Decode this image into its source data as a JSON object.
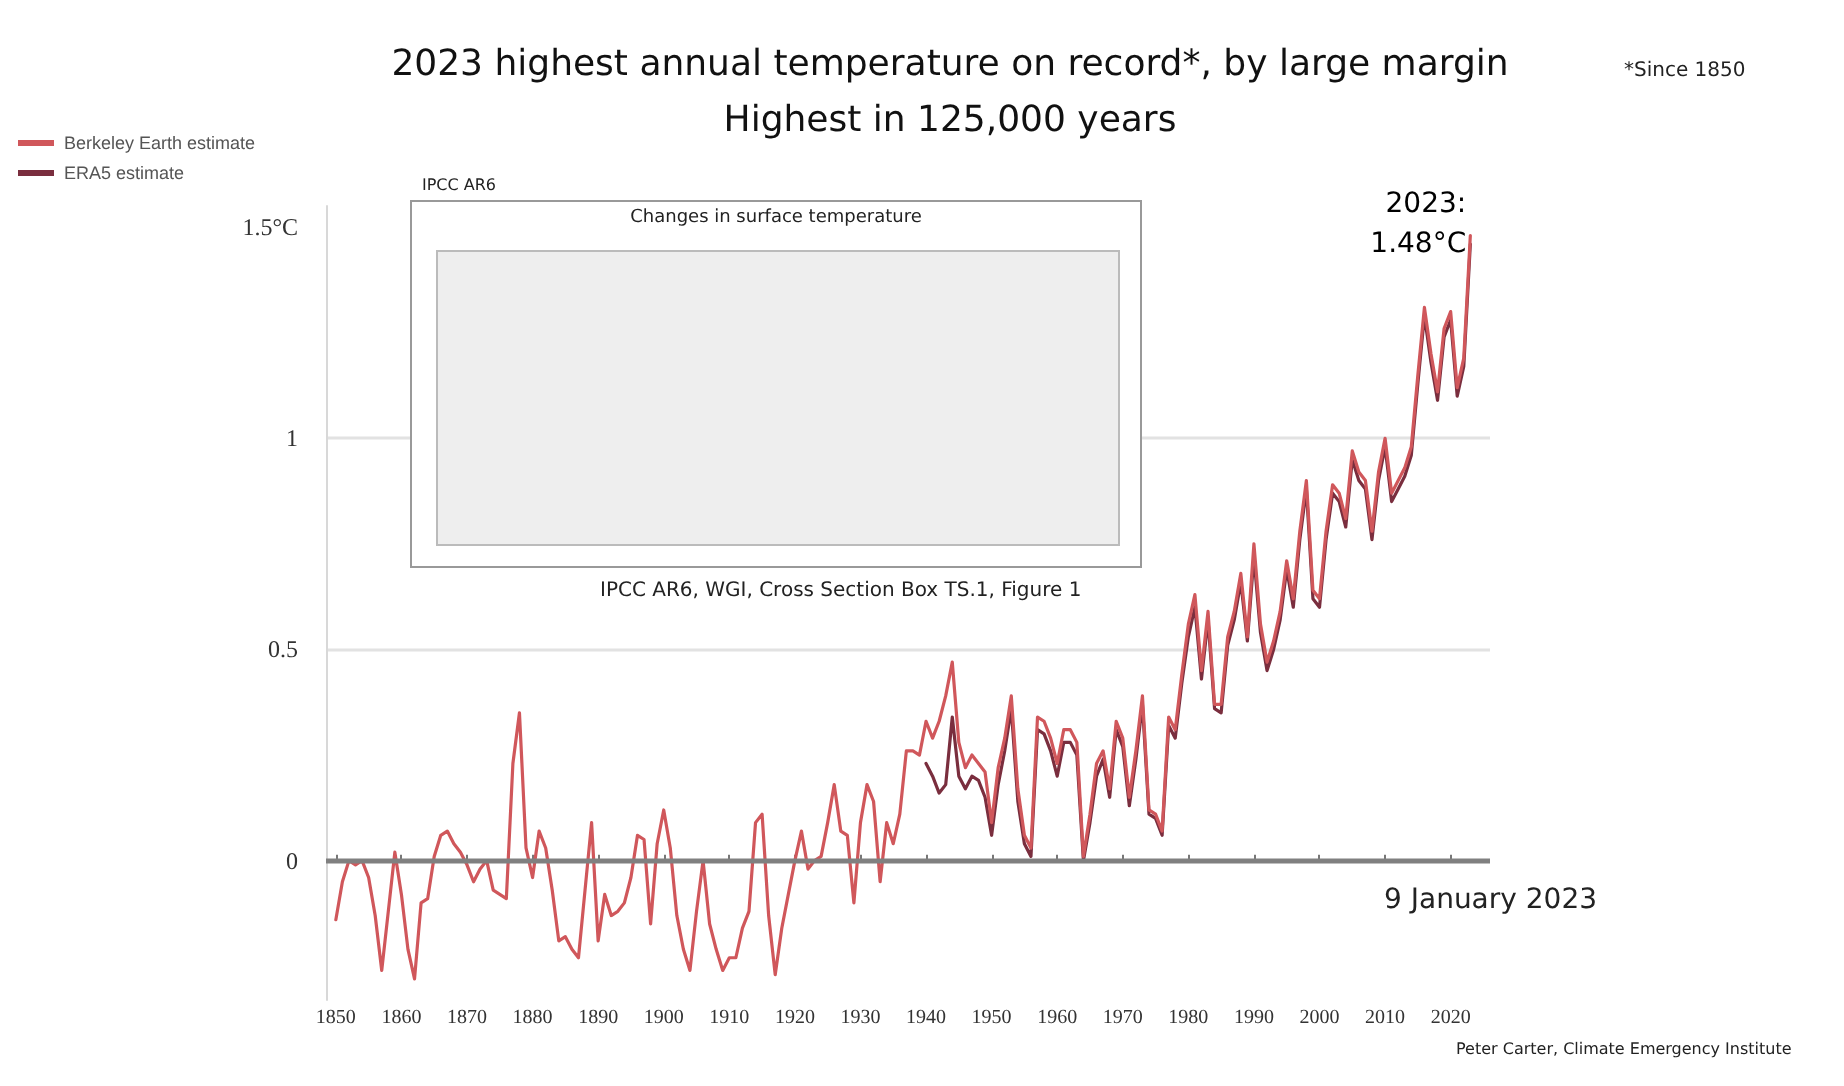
{
  "chart_data": {
    "type": "line",
    "title": "2023 highest annual temperature on record*, by large margin",
    "subtitle": "Highest in 125,000 years",
    "x": [
      1850,
      1851,
      1852,
      1853,
      1854,
      1855,
      1856,
      1857,
      1858,
      1859,
      1860,
      1861,
      1862,
      1863,
      1864,
      1865,
      1866,
      1867,
      1868,
      1869,
      1870,
      1871,
      1872,
      1873,
      1874,
      1875,
      1876,
      1877,
      1878,
      1879,
      1880,
      1881,
      1882,
      1883,
      1884,
      1885,
      1886,
      1887,
      1888,
      1889,
      1890,
      1891,
      1892,
      1893,
      1894,
      1895,
      1896,
      1897,
      1898,
      1899,
      1900,
      1901,
      1902,
      1903,
      1904,
      1905,
      1906,
      1907,
      1908,
      1909,
      1910,
      1911,
      1912,
      1913,
      1914,
      1915,
      1916,
      1917,
      1918,
      1919,
      1920,
      1921,
      1922,
      1923,
      1924,
      1925,
      1926,
      1927,
      1928,
      1929,
      1930,
      1931,
      1932,
      1933,
      1934,
      1935,
      1936,
      1937,
      1938,
      1939,
      1940,
      1941,
      1942,
      1943,
      1944,
      1945,
      1946,
      1947,
      1948,
      1949,
      1950,
      1951,
      1952,
      1953,
      1954,
      1955,
      1956,
      1957,
      1958,
      1959,
      1960,
      1961,
      1962,
      1963,
      1964,
      1965,
      1966,
      1967,
      1968,
      1969,
      1970,
      1971,
      1972,
      1973,
      1974,
      1975,
      1976,
      1977,
      1978,
      1979,
      1980,
      1981,
      1982,
      1983,
      1984,
      1985,
      1986,
      1987,
      1988,
      1989,
      1990,
      1991,
      1992,
      1993,
      1994,
      1995,
      1996,
      1997,
      1998,
      1999,
      2000,
      2001,
      2002,
      2003,
      2004,
      2005,
      2006,
      2007,
      2008,
      2009,
      2010,
      2011,
      2012,
      2013,
      2014,
      2015,
      2016,
      2017,
      2018,
      2019,
      2020,
      2021,
      2022,
      2023
    ],
    "series": [
      {
        "name": "ERA5 estimate",
        "color": "#7a2e3e",
        "values": [
          null,
          null,
          null,
          null,
          null,
          null,
          null,
          null,
          null,
          null,
          null,
          null,
          null,
          null,
          null,
          null,
          null,
          null,
          null,
          null,
          null,
          null,
          null,
          null,
          null,
          null,
          null,
          null,
          null,
          null,
          null,
          null,
          null,
          null,
          null,
          null,
          null,
          null,
          null,
          null,
          null,
          null,
          null,
          null,
          null,
          null,
          null,
          null,
          null,
          null,
          null,
          null,
          null,
          null,
          null,
          null,
          null,
          null,
          null,
          null,
          null,
          null,
          null,
          null,
          null,
          null,
          null,
          null,
          null,
          null,
          null,
          null,
          null,
          null,
          null,
          null,
          null,
          null,
          null,
          null,
          null,
          null,
          null,
          null,
          null,
          null,
          null,
          null,
          null,
          null,
          0.23,
          0.2,
          0.16,
          0.18,
          0.34,
          0.2,
          0.17,
          0.2,
          0.19,
          0.15,
          0.06,
          0.18,
          0.26,
          0.36,
          0.14,
          0.04,
          0.01,
          0.31,
          0.3,
          0.26,
          0.2,
          0.28,
          0.28,
          0.25,
          0.0,
          0.09,
          0.2,
          0.24,
          0.15,
          0.31,
          0.27,
          0.13,
          0.24,
          0.37,
          0.11,
          0.1,
          0.06,
          0.32,
          0.29,
          0.42,
          0.53,
          0.6,
          0.43,
          0.57,
          0.36,
          0.35,
          0.51,
          0.57,
          0.66,
          0.52,
          0.72,
          0.54,
          0.45,
          0.5,
          0.57,
          0.69,
          0.6,
          0.76,
          0.88,
          0.62,
          0.6,
          0.76,
          0.87,
          0.85,
          0.79,
          0.95,
          0.9,
          0.88,
          0.76,
          0.9,
          0.98,
          0.85,
          0.88,
          0.91,
          0.96,
          1.13,
          1.29,
          1.18,
          1.09,
          1.24,
          1.28,
          1.1,
          1.17,
          1.46
        ]
      },
      {
        "name": "Berkeley Earth estimate",
        "color": "#d0575b",
        "values": [
          -0.14,
          -0.05,
          0,
          -0.01,
          0,
          -0.04,
          -0.13,
          -0.26,
          -0.12,
          0.02,
          -0.08,
          -0.21,
          -0.28,
          -0.1,
          -0.09,
          0.01,
          0.06,
          0.07,
          0.04,
          0.02,
          -0.01,
          -0.05,
          -0.02,
          0,
          -0.07,
          -0.08,
          -0.09,
          0.23,
          0.35,
          0.03,
          -0.04,
          0.07,
          0.03,
          -0.07,
          -0.19,
          -0.18,
          -0.21,
          -0.23,
          -0.07,
          0.09,
          -0.19,
          -0.08,
          -0.13,
          -0.12,
          -0.1,
          -0.04,
          0.06,
          0.05,
          -0.15,
          0.04,
          0.12,
          0.03,
          -0.13,
          -0.21,
          -0.26,
          -0.12,
          0,
          -0.15,
          -0.21,
          -0.26,
          -0.23,
          -0.23,
          -0.16,
          -0.12,
          0.09,
          0.11,
          -0.13,
          -0.27,
          -0.16,
          -0.08,
          0,
          0.07,
          -0.02,
          0,
          0.01,
          0.09,
          0.18,
          0.07,
          0.06,
          -0.1,
          0.09,
          0.18,
          0.14,
          -0.05,
          0.09,
          0.04,
          0.11,
          0.26,
          0.26,
          0.25,
          0.33,
          0.29,
          0.33,
          0.39,
          0.47,
          0.28,
          0.22,
          0.25,
          0.23,
          0.21,
          0.09,
          0.22,
          0.29,
          0.39,
          0.17,
          0.06,
          0.03,
          0.34,
          0.33,
          0.29,
          0.23,
          0.31,
          0.31,
          0.28,
          0.01,
          0.11,
          0.23,
          0.26,
          0.17,
          0.33,
          0.29,
          0.15,
          0.26,
          0.39,
          0.12,
          0.11,
          0.07,
          0.34,
          0.31,
          0.44,
          0.56,
          0.63,
          0.45,
          0.59,
          0.37,
          0.37,
          0.53,
          0.59,
          0.68,
          0.53,
          0.75,
          0.56,
          0.47,
          0.52,
          0.59,
          0.71,
          0.62,
          0.78,
          0.9,
          0.64,
          0.62,
          0.78,
          0.89,
          0.87,
          0.81,
          0.97,
          0.92,
          0.9,
          0.78,
          0.92,
          1.0,
          0.87,
          0.9,
          0.93,
          0.98,
          1.15,
          1.31,
          1.2,
          1.11,
          1.26,
          1.3,
          1.12,
          1.19,
          1.48
        ]
      }
    ],
    "xlim": [
      1848.5,
      2026
    ],
    "xticks": [
      1850,
      1860,
      1870,
      1880,
      1890,
      1900,
      1910,
      1920,
      1930,
      1940,
      1950,
      1960,
      1970,
      1980,
      1990,
      2000,
      2010,
      2020
    ],
    "ylim": [
      -0.33,
      1.55
    ],
    "yticks": [
      0,
      0.5,
      1,
      {
        "value": 1.5,
        "label": "1.5°C"
      }
    ],
    "grid": "y",
    "legend": "top left",
    "marker": "none",
    "line_style": "solid",
    "ref_lines": [
      {
        "axis": "y",
        "value": 0,
        "color": "#808080"
      }
    ],
    "annotations": [
      "*Since 1850",
      {
        "text": "2023:\n1.48°C",
        "x": 2023,
        "y": 1.48
      },
      "9 January 2023",
      "Peter Carter, Climate Emergency Institute",
      "IPCC AR6",
      "Changes in surface temperature",
      "IPCC AR6, WGI, Cross Section Box TS.1, Figure 1"
    ]
  }
}
